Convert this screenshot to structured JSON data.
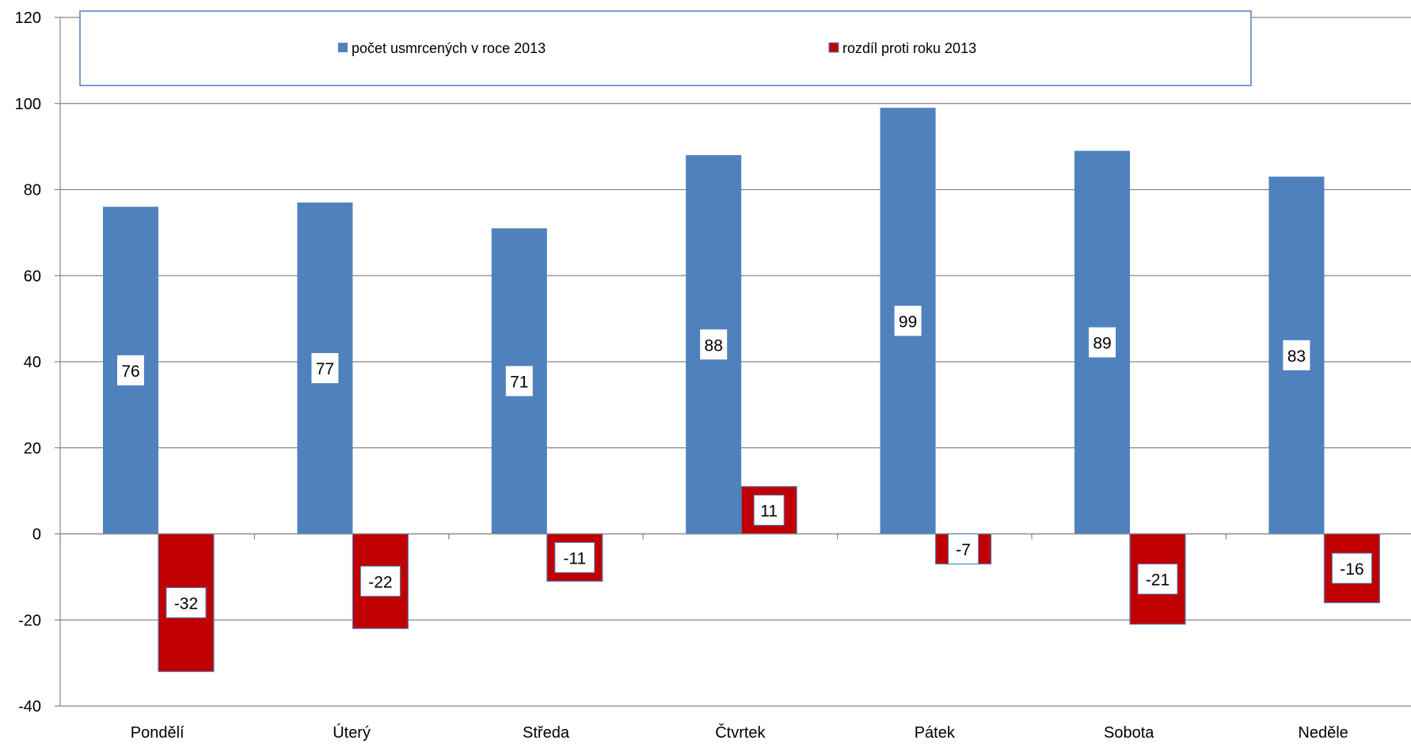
{
  "chart_data": {
    "type": "bar",
    "categories": [
      "Pondělí",
      "Úterý",
      "Středa",
      "Čtvrtek",
      "Pátek",
      "Sobota",
      "Neděle"
    ],
    "series": [
      {
        "name": "počet usmrcených v roce 2013",
        "values": [
          76,
          77,
          71,
          88,
          99,
          89,
          83
        ],
        "color": "#4f81bd"
      },
      {
        "name": "rozdíl proti roku 2013",
        "values": [
          -32,
          -22,
          -11,
          11,
          -7,
          -21,
          -16
        ],
        "color": "#c00000"
      }
    ],
    "ylim": [
      -40,
      120
    ],
    "yticks": [
      120,
      100,
      80,
      60,
      40,
      20,
      0,
      -20,
      -40
    ],
    "grid": true,
    "legend_position": "top"
  }
}
